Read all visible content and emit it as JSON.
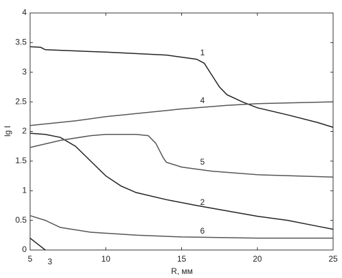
{
  "chart_data": {
    "type": "line",
    "x_label": "R, мм",
    "y_label": "lg I",
    "xlim": [
      5,
      25
    ],
    "xticks": [
      5,
      10,
      15,
      20,
      25
    ],
    "ylim": [
      0,
      4
    ],
    "yticks": [
      0,
      0.5,
      1,
      1.5,
      2,
      2.5,
      3,
      3.5,
      4
    ],
    "grid": false,
    "series": [
      {
        "name": "1",
        "color": "#222",
        "x": [
          5,
          5.7,
          6,
          10,
          14,
          16,
          16.5,
          17,
          17.5,
          18,
          19,
          20,
          22,
          24,
          25
        ],
        "values": [
          3.43,
          3.42,
          3.38,
          3.34,
          3.29,
          3.22,
          3.15,
          2.95,
          2.75,
          2.62,
          2.5,
          2.4,
          2.28,
          2.15,
          2.07
        ]
      },
      {
        "name": "2",
        "color": "#222",
        "x": [
          5,
          6,
          7,
          8,
          9,
          10,
          11,
          12,
          14,
          16,
          18,
          20,
          22,
          24,
          25
        ],
        "values": [
          1.97,
          1.95,
          1.9,
          1.75,
          1.5,
          1.25,
          1.08,
          0.97,
          0.85,
          0.75,
          0.66,
          0.57,
          0.5,
          0.4,
          0.35
        ]
      },
      {
        "name": "3",
        "color": "#222",
        "x": [
          5,
          5.5,
          6
        ],
        "values": [
          0.2,
          0.1,
          0
        ]
      },
      {
        "name": "4",
        "color": "#555",
        "x": [
          5,
          8,
          10,
          15,
          18,
          20,
          25
        ],
        "values": [
          2.1,
          2.18,
          2.25,
          2.38,
          2.44,
          2.47,
          2.5
        ]
      },
      {
        "name": "5",
        "color": "#555",
        "x": [
          5,
          7,
          9,
          10,
          12,
          12.8,
          13.3,
          13.8,
          14,
          15,
          17,
          20,
          25
        ],
        "values": [
          1.73,
          1.85,
          1.93,
          1.95,
          1.95,
          1.93,
          1.8,
          1.55,
          1.48,
          1.4,
          1.33,
          1.27,
          1.23
        ]
      },
      {
        "name": "6",
        "color": "#555",
        "x": [
          5,
          6,
          7,
          9,
          12,
          15,
          20,
          25
        ],
        "values": [
          0.58,
          0.5,
          0.38,
          0.3,
          0.25,
          0.22,
          0.2,
          0.2
        ]
      }
    ]
  }
}
